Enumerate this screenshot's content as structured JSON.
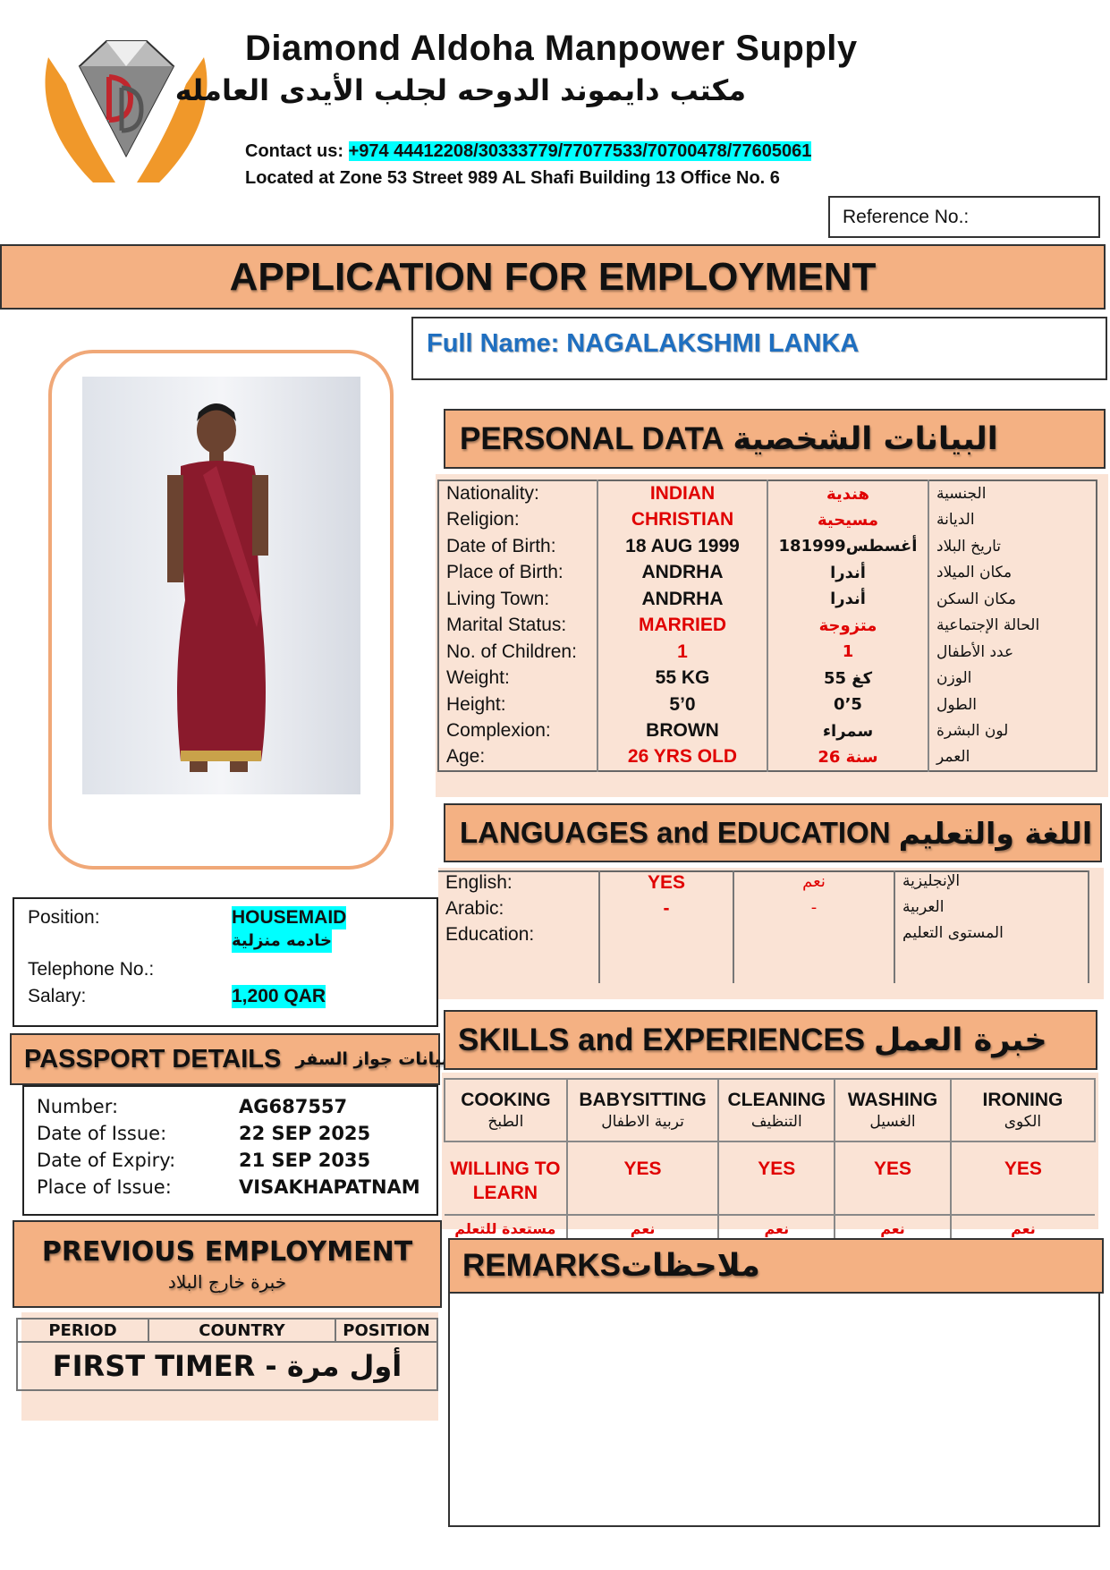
{
  "company": {
    "name": "Diamond Aldoha Manpower Supply",
    "name_ar": "مكتب دايموند الدوحه لجلب الأيدى العامله",
    "contact_label": "Contact us:",
    "contact_numbers": "+974 44412208/30333779/77077533/70700478/77605061",
    "address": "Located at Zone 53 Street 989 AL Shafi Building 13 Office No. 6",
    "logo_letters": "DD"
  },
  "reference_label": "Reference No.:",
  "banner": "APPLICATION FOR EMPLOYMENT",
  "full_name": "Full Name: NAGALAKSHMI LANKA",
  "personal": {
    "title": "PERSONAL DATA",
    "title_ar": "البيانات الشخصية",
    "rows": [
      {
        "label": "Nationality:",
        "value": "INDIAN",
        "value_ar": "هندية",
        "label_ar": "الجنسية",
        "red": true
      },
      {
        "label": "Religion:",
        "value": "CHRISTIAN",
        "value_ar": "مسيحية",
        "label_ar": "الديانة",
        "red": true
      },
      {
        "label": "Date of Birth:",
        "value": "18 AUG 1999",
        "value_ar": "18أغسطس1999",
        "label_ar": "تاريخ البلاد",
        "red": false
      },
      {
        "label": "Place of Birth:",
        "value": "ANDRHA",
        "value_ar": "أندرا",
        "label_ar": "مكان الميلاد",
        "red": false
      },
      {
        "label": "Living Town:",
        "value": "ANDRHA",
        "value_ar": "أندرا",
        "label_ar": "مكان السكن",
        "red": false
      },
      {
        "label": "Marital Status:",
        "value": "MARRIED",
        "value_ar": "متزوجة",
        "label_ar": "الحالة الإجتماعية",
        "red": true
      },
      {
        "label": "No. of Children:",
        "value": "1",
        "value_ar": "1",
        "label_ar": "عدد الأطفال",
        "red": true
      },
      {
        "label": "Weight:",
        "value": "55 KG",
        "value_ar": "55 كغ",
        "label_ar": "الوزن",
        "red": false
      },
      {
        "label": "Height:",
        "value": "5’0",
        "value_ar": "0’5",
        "label_ar": "الطول",
        "red": false
      },
      {
        "label": "Complexion:",
        "value": "BROWN",
        "value_ar": "سمراء",
        "label_ar": "لون البشرة",
        "red": false
      },
      {
        "label": "Age:",
        "value": "26 YRS OLD",
        "value_ar": "26 سنة",
        "label_ar": "العمر",
        "red": true
      }
    ]
  },
  "languages": {
    "title": "LANGUAGES and EDUCATION",
    "title_ar": "اللغة والتعليم",
    "rows": [
      {
        "label": "English:",
        "value": "YES",
        "value_ar": "نعم",
        "label_ar": "الإنجليزية"
      },
      {
        "label": "Arabic:",
        "value": "-",
        "value_ar": "-",
        "label_ar": "العربية"
      },
      {
        "label": "Education:",
        "value": "",
        "value_ar": "",
        "label_ar": "المستوى التعليم"
      }
    ]
  },
  "job": {
    "position_label": "Position:",
    "position": "HOUSEMAID",
    "position_ar": "خادمه منزلية",
    "phone_label": "Telephone No.:",
    "salary_label": "Salary:",
    "salary": "1,200 QAR"
  },
  "passport": {
    "title": "PASSPORT DETAILS",
    "title_ar": "بيانات جواز السفر",
    "rows": [
      {
        "label": "Number:",
        "value": "AG687557"
      },
      {
        "label": "Date of Issue:",
        "value": "22 SEP 2025"
      },
      {
        "label": "Date of Expiry:",
        "value": "21 SEP 2035"
      },
      {
        "label": "Place of Issue:",
        "value": "VISAKHAPATNAM"
      }
    ]
  },
  "previous": {
    "title": "PREVIOUS EMPLOYMENT",
    "title_ar": "خبرة خارج البلاد",
    "columns": [
      "PERIOD",
      "COUNTRY",
      "POSITION"
    ],
    "value": "FIRST TIMER - أول مرة"
  },
  "skills": {
    "title": "SKILLS and EXPERIENCES",
    "title_ar": "خبرة العمل",
    "items": [
      {
        "name": "COOKING",
        "name_ar": "الطبخ",
        "value": "WILLING TO LEARN",
        "value_ar": "مستعدة للتعلم"
      },
      {
        "name": "BABYSITTING",
        "name_ar": "تربية الاطفال",
        "value": "YES",
        "value_ar": "نعم"
      },
      {
        "name": "CLEANING",
        "name_ar": "التنظيف",
        "value": "YES",
        "value_ar": "نعم"
      },
      {
        "name": "WASHING",
        "name_ar": "الغسيل",
        "value": "YES",
        "value_ar": "نعم"
      },
      {
        "name": "IRONING",
        "name_ar": "الكوى",
        "value": "YES",
        "value_ar": "نعم"
      }
    ]
  },
  "remarks": {
    "title": "REMARKS",
    "title_ar": "ملاحظات"
  },
  "colors": {
    "header": "#f4b183",
    "table_bg": "#fae3d5",
    "highlight": "#00ffff",
    "red": "#e00000",
    "name_blue": "#1f6fc0",
    "photo_frame": "#f0a878"
  }
}
